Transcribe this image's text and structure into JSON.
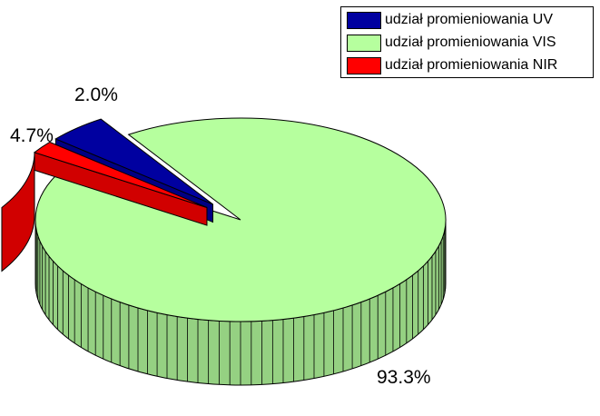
{
  "chart_data": {
    "type": "pie",
    "variant": "3d-exploded",
    "title": "",
    "legend_position": "top-right",
    "slices": [
      {
        "label": "udział promieniowania UV",
        "value": 4.7,
        "display": "4.7%",
        "color": "#0000a0",
        "exploded": true
      },
      {
        "label": "udział promieniowania VIS",
        "value": 93.3,
        "display": "93.3%",
        "color": "#b6ff9e",
        "exploded": false
      },
      {
        "label": "udział promieniowania NIR",
        "value": 2.0,
        "display": "2.0%",
        "color": "#ff0000",
        "exploded": true
      }
    ]
  }
}
